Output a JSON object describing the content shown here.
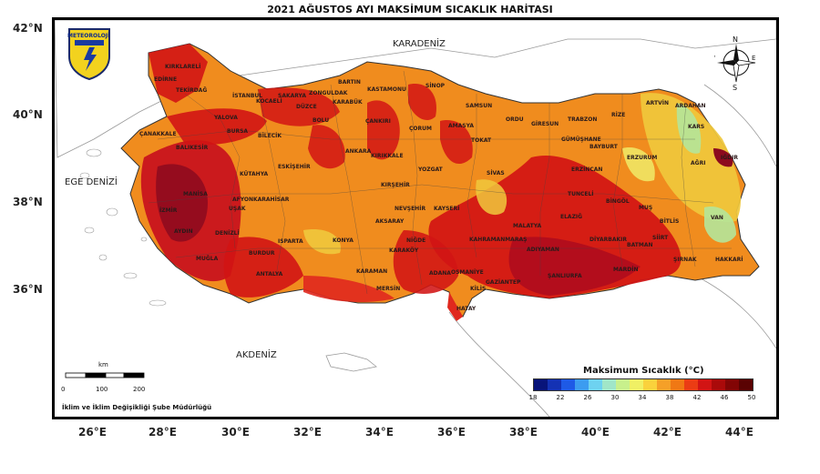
{
  "title": "2021 AĞUSTOS AYI MAKSİMUM SICAKLIK HARİTASI",
  "logo_text": "METEOROLOJİ",
  "latitudes": [
    "42°N",
    "40°N",
    "38°N",
    "36°N"
  ],
  "longitudes": [
    "26°E",
    "28°E",
    "30°E",
    "32°E",
    "34°E",
    "36°E",
    "38°E",
    "40°E",
    "42°E",
    "44°E"
  ],
  "seas": {
    "black_sea": "KARADENİZ",
    "aegean": "EGE DENİZİ",
    "mediterranean": "AKDENİZ"
  },
  "compass": {
    "n": "N",
    "s": "S",
    "e": "E",
    "w": "W"
  },
  "cities": [
    "KIRKLARELİ",
    "EDİRNE",
    "TEKİRDAĞ",
    "İSTANBUL",
    "KOCAELİ",
    "SAKARYA",
    "DÜZCE",
    "BOLU",
    "ZONGULDAK",
    "BARTIN",
    "KARABÜK",
    "KASTAMONU",
    "SİNOP",
    "SAMSUN",
    "ORDU",
    "GİRESUN",
    "TRABZON",
    "RİZE",
    "ARTVİN",
    "ARDAHAN",
    "KARS",
    "IĞDIR",
    "AĞRI",
    "ERZURUM",
    "BAYBURT",
    "GÜMÜŞHANE",
    "ERZİNCAN",
    "TUNCELİ",
    "BİNGÖL",
    "MUŞ",
    "BİTLİS",
    "VAN",
    "HAKKARİ",
    "ŞIRNAK",
    "SİİRT",
    "BATMAN",
    "MARDİN",
    "DİYARBAKIR",
    "ŞANLIURFA",
    "ADIYAMAN",
    "MALATYA",
    "ELAZIĞ",
    "KAHRAMANMARAŞ",
    "GAZİANTEP",
    "KİLİS",
    "HATAY",
    "OSMANİYE",
    "ADANA",
    "MERSİN",
    "KARAMAN",
    "KONYA",
    "ANTALYA",
    "BURDUR",
    "ISPARTA",
    "AFYONKARAHİSAR",
    "DENİZLİ",
    "MUĞLA",
    "AYDIN",
    "İZMİR",
    "MANİSA",
    "UŞAK",
    "KÜTAHYA",
    "BİLECİK",
    "BURSA",
    "BALIKESİR",
    "ÇANAKKALE",
    "YALOVA",
    "ESKİŞEHİR",
    "ANKARA",
    "KIRIKKALE",
    "ÇANKIRI",
    "ÇORUM",
    "AMASYA",
    "TOKAT",
    "SİVAS",
    "YOZGAT",
    "KIRŞEHİR",
    "NEVŞEHİR",
    "AKSARAY",
    "NİĞDE",
    "KAYSERİ",
    "KARAKÖY"
  ],
  "scale": {
    "unit": "km",
    "ticks": [
      "0",
      "100",
      "200"
    ]
  },
  "credit": "İklim ve İklim Değişikliği Şube Müdürlüğü",
  "legend": {
    "title": "Maksimum Sıcaklık (°C)",
    "ticks": [
      "18",
      "22",
      "26",
      "30",
      "34",
      "38",
      "42",
      "46",
      "50"
    ],
    "colors": [
      "#08147a",
      "#1432b4",
      "#1e5ae6",
      "#3c9cf0",
      "#6ed2f0",
      "#a0e6c8",
      "#c8f08c",
      "#f0f064",
      "#fad23c",
      "#f5a028",
      "#f07814",
      "#eb3c14",
      "#d21414",
      "#aa0a0a",
      "#820505",
      "#5a0202"
    ]
  }
}
